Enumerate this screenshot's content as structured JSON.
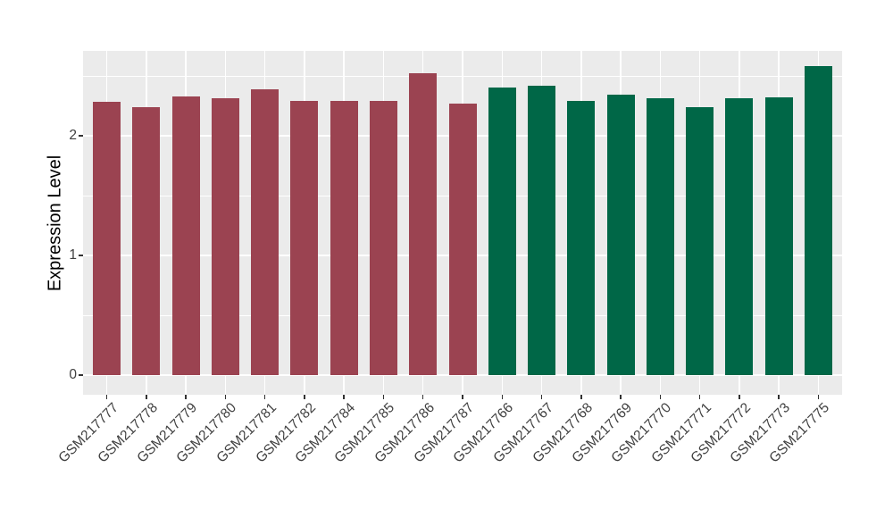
{
  "chart_data": {
    "type": "bar",
    "title": "",
    "xlabel": "",
    "ylabel": "Expression Level",
    "ylim": [
      0,
      2.71
    ],
    "y_major_ticks": [
      "0",
      "1",
      "2"
    ],
    "y_major_values": [
      0,
      1,
      2
    ],
    "y_minor_values": [
      0.5,
      1.5,
      2.5
    ],
    "grid": true,
    "legend_position": "none",
    "categories": [
      "GSM217777",
      "GSM217778",
      "GSM217779",
      "GSM217780",
      "GSM217781",
      "GSM217782",
      "GSM217784",
      "GSM217785",
      "GSM217786",
      "GSM217787",
      "GSM217766",
      "GSM217767",
      "GSM217768",
      "GSM217769",
      "GSM217770",
      "GSM217771",
      "GSM217772",
      "GSM217773",
      "GSM217775"
    ],
    "values": [
      2.28,
      2.24,
      2.33,
      2.31,
      2.39,
      2.29,
      2.29,
      2.29,
      2.52,
      2.27,
      2.4,
      2.42,
      2.29,
      2.34,
      2.31,
      2.24,
      2.31,
      2.32,
      2.58
    ],
    "bar_colors": [
      "#9B4351",
      "#9B4351",
      "#9B4351",
      "#9B4351",
      "#9B4351",
      "#9B4351",
      "#9B4351",
      "#9B4351",
      "#9B4351",
      "#9B4351",
      "#006747",
      "#006747",
      "#006747",
      "#006747",
      "#006747",
      "#006747",
      "#006747",
      "#006747",
      "#006747"
    ]
  },
  "style": {
    "figure_bg": "#FFFFFF",
    "panel_bg": "#EBEBEB",
    "grid_color": "#FFFFFF",
    "axis_text_color": "#404040",
    "axis_title_color": "#000000",
    "tick_mark_color": "#333333"
  }
}
